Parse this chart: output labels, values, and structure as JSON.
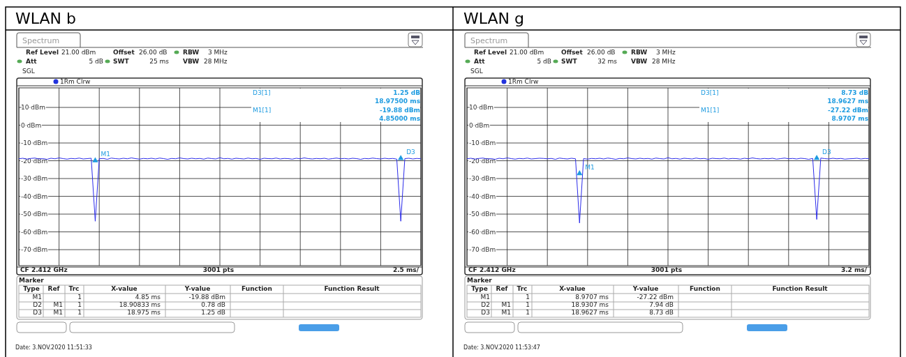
{
  "chart_data": [
    {
      "type": "line",
      "title": "WLAN b",
      "ylim": [
        -79,
        21
      ],
      "grid": true,
      "tick_labels": "y",
      "yticks": [
        {
          "value": 10,
          "label": "10 dBm"
        },
        {
          "value": 0,
          "label": "0 dBm"
        },
        {
          "value": -10,
          "label": "-10 dBm"
        },
        {
          "value": -20,
          "label": "-20 dBm"
        },
        {
          "value": -30,
          "label": "-30 dBm"
        },
        {
          "value": -40,
          "label": "-40 dBm"
        },
        {
          "value": -50,
          "label": "-50 dBm"
        },
        {
          "value": -60,
          "label": "-60 dBm"
        },
        {
          "value": -70,
          "label": "-70 dBm"
        }
      ],
      "categories": [
        null,
        null,
        null,
        null,
        null,
        null,
        null,
        null,
        null,
        null,
        null,
        null,
        null,
        null,
        null,
        null,
        null,
        null,
        null,
        null,
        null,
        null,
        null,
        null,
        null,
        null,
        null,
        null,
        null,
        null,
        null,
        null,
        null,
        null,
        null,
        null,
        null,
        null,
        null,
        null,
        null,
        null,
        null,
        null,
        null,
        null,
        null,
        null,
        null,
        null,
        null,
        null,
        null,
        null,
        null,
        null,
        null,
        null,
        null,
        null,
        null,
        null,
        null,
        null,
        null,
        null,
        null,
        null,
        null,
        null,
        null,
        null,
        null,
        null,
        null,
        null,
        null,
        null,
        null,
        null,
        null,
        null,
        null,
        null,
        null,
        null,
        null,
        null,
        null,
        null,
        null,
        null,
        null,
        null,
        null,
        null,
        null,
        null,
        null,
        null,
        null
      ],
      "series": [
        {
          "color": "#2b2bea",
          "values": [
            -18.9,
            -18.6,
            -19.1,
            -18.7,
            -18.5,
            -19.0,
            -18.8,
            -19.2,
            -18.6,
            -18.9,
            -18.4,
            -18.8,
            -19.1,
            -18.7,
            -18.9,
            -18.5,
            -19.0,
            -18.8,
            -18.6,
            -54,
            -18.9,
            -18.7,
            -19.2,
            -18.5,
            -18.8,
            -19.0,
            -18.6,
            -18.9,
            -18.4,
            -18.8,
            -19.1,
            -18.7,
            -18.9,
            -18.6,
            -19.0,
            -18.5,
            -18.8,
            -19.2,
            -18.7,
            -18.9,
            -18.4,
            -18.8,
            -19.0,
            -18.6,
            -18.9,
            -18.7,
            -19.1,
            -18.5,
            -18.8,
            -19.0,
            -18.3,
            -18.9,
            -18.7,
            -19.1,
            -18.6,
            -18.8,
            -19.0,
            -18.5,
            -18.9,
            -18.7,
            -19.2,
            -18.6,
            -18.8,
            -18.9,
            -18.5,
            -19.0,
            -18.7,
            -18.8,
            -19.1,
            -18.6,
            -18.9,
            -18.4,
            -18.8,
            -19.0,
            -18.7,
            -18.9,
            -18.6,
            -19.1,
            -18.8,
            -18.5,
            -18.9,
            -18.7,
            -19.0,
            -18.6,
            -18.8,
            -19.2,
            -18.7,
            -18.9,
            -18.5,
            -18.8,
            -19.0,
            -18.6,
            -18.9,
            -18.7,
            -19.1,
            -54,
            -18.8,
            -18.6,
            -19.0,
            -18.7,
            -18.9
          ]
        },
        {
          "type": "scatter",
          "name": "M1",
          "color": "#1e9be0",
          "marker": "triangle",
          "values": [
            null,
            null,
            null,
            null,
            null,
            null,
            null,
            null,
            null,
            null,
            null,
            null,
            null,
            null,
            null,
            null,
            null,
            null,
            null,
            -19.9,
            null,
            null,
            null,
            null,
            null,
            null,
            null,
            null,
            null,
            null,
            null,
            null,
            null,
            null,
            null,
            null,
            null,
            null,
            null,
            null,
            null,
            null,
            null,
            null,
            null,
            null,
            null,
            null,
            null,
            null,
            null,
            null,
            null,
            null,
            null,
            null,
            null,
            null,
            null,
            null,
            null,
            null,
            null,
            null,
            null,
            null,
            null,
            null,
            null,
            null,
            null,
            null,
            null,
            null,
            null,
            null,
            null,
            null,
            null,
            null,
            null,
            null,
            null,
            null,
            null,
            null,
            null,
            null,
            null,
            null,
            null,
            null,
            null,
            null,
            null,
            null,
            null,
            null,
            null,
            null,
            null
          ]
        },
        {
          "type": "scatter",
          "name": "D3",
          "color": "#1e9be0",
          "marker": "triangle",
          "values": [
            null,
            null,
            null,
            null,
            null,
            null,
            null,
            null,
            null,
            null,
            null,
            null,
            null,
            null,
            null,
            null,
            null,
            null,
            null,
            null,
            null,
            null,
            null,
            null,
            null,
            null,
            null,
            null,
            null,
            null,
            null,
            null,
            null,
            null,
            null,
            null,
            null,
            null,
            null,
            null,
            null,
            null,
            null,
            null,
            null,
            null,
            null,
            null,
            null,
            null,
            null,
            null,
            null,
            null,
            null,
            null,
            null,
            null,
            null,
            null,
            null,
            null,
            null,
            null,
            null,
            null,
            null,
            null,
            null,
            null,
            null,
            null,
            null,
            null,
            null,
            null,
            null,
            null,
            null,
            null,
            null,
            null,
            null,
            null,
            null,
            null,
            null,
            null,
            null,
            null,
            null,
            null,
            null,
            null,
            null,
            -18.6,
            null,
            null,
            null,
            null,
            null
          ]
        }
      ],
      "annotations": [
        "Spectrum",
        "Ref Level",
        "21.00 dBm",
        "Offset",
        "26.00 dB",
        "RBW",
        "3 MHz",
        "Att",
        "5 dB",
        "SWT",
        "25 ms",
        "VBW",
        "28 MHz",
        "SGL",
        "1Rm Clrw",
        "D3[1]",
        "1.25 dB",
        "18.97500 ms",
        "M1[1]",
        "-19.88 dBm",
        "4.85000 ms",
        "CF 2.412 GHz",
        "3001 pts",
        "2.5 ms/",
        "Marker",
        "Type",
        "Ref",
        "Trc",
        "X-value",
        "Y-value",
        "Function",
        "Function Result",
        "M1",
        "1",
        "4.85 ms",
        "-19.88 dBm",
        "D2",
        "M1",
        "1",
        "18.90833 ms",
        "0.78 dB",
        "D3",
        "M1",
        "1",
        "18.975 ms",
        "1.25 dB",
        "Date: 3.NOV.2020  11:51:33"
      ]
    },
    {
      "type": "line",
      "title": "WLAN g",
      "ylim": [
        -79,
        21
      ],
      "grid": true,
      "tick_labels": "y",
      "yticks": [
        {
          "value": 10,
          "label": "10 dBm"
        },
        {
          "value": 0,
          "label": "0 dBm"
        },
        {
          "value": -10,
          "label": "-10 dBm"
        },
        {
          "value": -20,
          "label": "-20 dBm"
        },
        {
          "value": -30,
          "label": "-30 dBm"
        },
        {
          "value": -40,
          "label": "-40 dBm"
        },
        {
          "value": -50,
          "label": "-50 dBm"
        },
        {
          "value": -60,
          "label": "-60 dBm"
        },
        {
          "value": -70,
          "label": "-70 dBm"
        }
      ],
      "categories": [
        null,
        null,
        null,
        null,
        null,
        null,
        null,
        null,
        null,
        null,
        null,
        null,
        null,
        null,
        null,
        null,
        null,
        null,
        null,
        null,
        null,
        null,
        null,
        null,
        null,
        null,
        null,
        null,
        null,
        null,
        null,
        null,
        null,
        null,
        null,
        null,
        null,
        null,
        null,
        null,
        null,
        null,
        null,
        null,
        null,
        null,
        null,
        null,
        null,
        null,
        null,
        null,
        null,
        null,
        null,
        null,
        null,
        null,
        null,
        null,
        null,
        null,
        null,
        null,
        null,
        null,
        null,
        null,
        null,
        null,
        null,
        null,
        null,
        null,
        null,
        null,
        null,
        null,
        null,
        null,
        null,
        null,
        null,
        null,
        null,
        null,
        null,
        null,
        null,
        null,
        null,
        null,
        null,
        null,
        null,
        null,
        null,
        null,
        null,
        null,
        null
      ],
      "series": [
        {
          "color": "#2b2bea",
          "values": [
            -18.9,
            -18.6,
            -19.1,
            -18.7,
            -18.5,
            -19.0,
            -18.8,
            -19.2,
            -18.6,
            -18.9,
            -18.4,
            -18.8,
            -19.1,
            -18.7,
            -18.9,
            -18.5,
            -19.0,
            -18.8,
            -18.6,
            -18.7,
            -18.9,
            -18.7,
            -19.2,
            -18.5,
            -18.8,
            -19.0,
            -18.6,
            -18.9,
            -55,
            -18.8,
            -19.1,
            -18.7,
            -18.9,
            -18.6,
            -19.0,
            -18.5,
            -18.8,
            -19.2,
            -18.7,
            -18.9,
            -18.4,
            -18.8,
            -19.0,
            -18.6,
            -18.9,
            -18.7,
            -19.1,
            -18.5,
            -18.8,
            -19.0,
            -18.3,
            -18.9,
            -18.7,
            -19.1,
            -18.6,
            -18.8,
            -19.0,
            -18.5,
            -18.9,
            -18.7,
            -19.2,
            -18.6,
            -18.8,
            -18.9,
            -18.5,
            -19.0,
            -18.7,
            -18.8,
            -19.1,
            -18.6,
            -18.9,
            -18.4,
            -18.8,
            -19.0,
            -18.7,
            -18.9,
            -18.6,
            -19.1,
            -18.8,
            -18.5,
            -18.9,
            -18.7,
            -19.0,
            -18.6,
            -18.8,
            -19.2,
            -18.7,
            -53,
            -18.5,
            -18.8,
            -19.0,
            -18.6,
            -18.9,
            -18.7,
            -19.1,
            -18.9,
            -18.8,
            -18.6,
            -19.0,
            -18.7,
            -18.9
          ]
        },
        {
          "type": "scatter",
          "name": "M1",
          "color": "#1e9be0",
          "marker": "triangle",
          "values": [
            null,
            null,
            null,
            null,
            null,
            null,
            null,
            null,
            null,
            null,
            null,
            null,
            null,
            null,
            null,
            null,
            null,
            null,
            null,
            null,
            null,
            null,
            null,
            null,
            null,
            null,
            null,
            null,
            -27.2,
            null,
            null,
            null,
            null,
            null,
            null,
            null,
            null,
            null,
            null,
            null,
            null,
            null,
            null,
            null,
            null,
            null,
            null,
            null,
            null,
            null,
            null,
            null,
            null,
            null,
            null,
            null,
            null,
            null,
            null,
            null,
            null,
            null,
            null,
            null,
            null,
            null,
            null,
            null,
            null,
            null,
            null,
            null,
            null,
            null,
            null,
            null,
            null,
            null,
            null,
            null,
            null,
            null,
            null,
            null,
            null,
            null,
            null,
            null,
            null,
            null,
            null,
            null,
            null,
            null,
            null,
            null,
            null,
            null,
            null,
            null,
            null
          ]
        },
        {
          "type": "scatter",
          "name": "D3",
          "color": "#1e9be0",
          "marker": "triangle",
          "values": [
            null,
            null,
            null,
            null,
            null,
            null,
            null,
            null,
            null,
            null,
            null,
            null,
            null,
            null,
            null,
            null,
            null,
            null,
            null,
            null,
            null,
            null,
            null,
            null,
            null,
            null,
            null,
            null,
            null,
            null,
            null,
            null,
            null,
            null,
            null,
            null,
            null,
            null,
            null,
            null,
            null,
            null,
            null,
            null,
            null,
            null,
            null,
            null,
            null,
            null,
            null,
            null,
            null,
            null,
            null,
            null,
            null,
            null,
            null,
            null,
            null,
            null,
            null,
            null,
            null,
            null,
            null,
            null,
            null,
            null,
            null,
            null,
            null,
            null,
            null,
            null,
            null,
            null,
            null,
            null,
            null,
            null,
            null,
            null,
            null,
            null,
            null,
            -18.5,
            null,
            null,
            null,
            null,
            null,
            null,
            null,
            null,
            null,
            null,
            null,
            null,
            null
          ]
        }
      ],
      "annotations": [
        "Spectrum",
        "Ref Level",
        "21.00 dBm",
        "Offset",
        "26.00 dB",
        "RBW",
        "3 MHz",
        "Att",
        "5 dB",
        "SWT",
        "32 ms",
        "VBW",
        "28 MHz",
        "SGL",
        "1Rm Clrw",
        "D3[1]",
        "8.73 dB",
        "18.9627 ms",
        "M1[1]",
        "-27.22 dBm",
        "8.9707 ms",
        "CF 2.412 GHz",
        "3001 pts",
        "3.2 ms/",
        "Marker",
        "Type",
        "Ref",
        "Trc",
        "X-value",
        "Y-value",
        "Function",
        "Function Result",
        "M1",
        "1",
        "8.9707 ms",
        "-27.22 dBm",
        "D2",
        "M1",
        "1",
        "18.9307 ms",
        "7.94 dB",
        "D3",
        "M1",
        "1",
        "18.9627 ms",
        "8.73 dB",
        "Date: 3.NOV.2020  11:53:47"
      ]
    }
  ]
}
